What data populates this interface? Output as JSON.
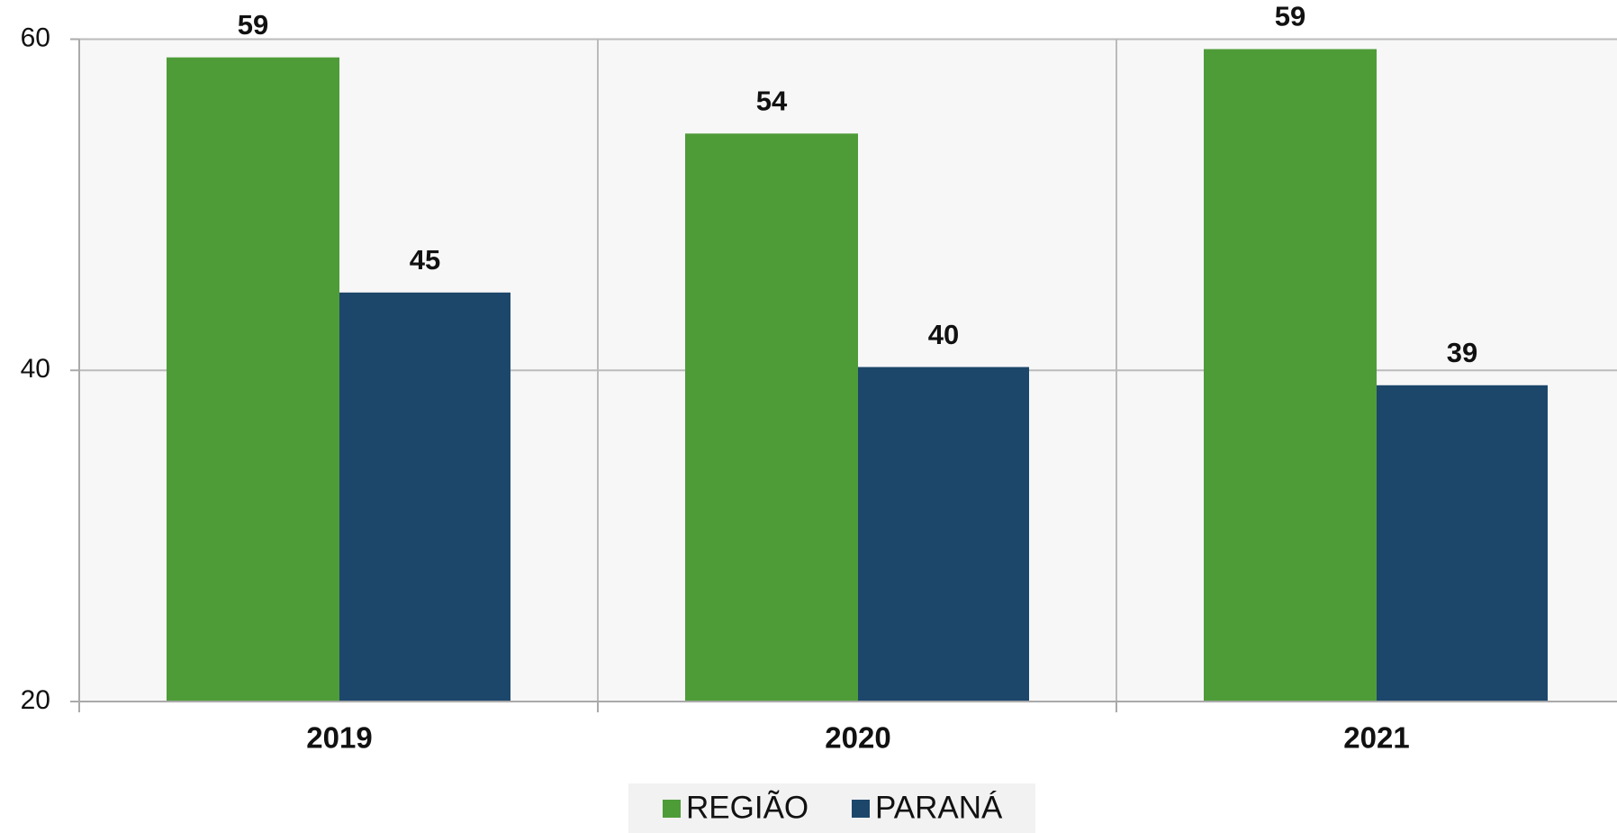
{
  "chart_data": {
    "type": "bar",
    "categories": [
      "2019",
      "2020",
      "2021"
    ],
    "series": [
      {
        "name": "REGIÃO",
        "color": "#4e9c38",
        "values": [
          58.9,
          54.3,
          59.4
        ],
        "value_labels": [
          "59",
          "54",
          "59"
        ]
      },
      {
        "name": "PARANÁ",
        "color": "#1c476b",
        "values": [
          44.7,
          40.2,
          39.1
        ],
        "value_labels": [
          "45",
          "40",
          "39"
        ]
      }
    ],
    "ylim": [
      20,
      60
    ],
    "yticks": [
      20,
      40,
      60
    ],
    "grid": true,
    "legend": "bottom"
  }
}
